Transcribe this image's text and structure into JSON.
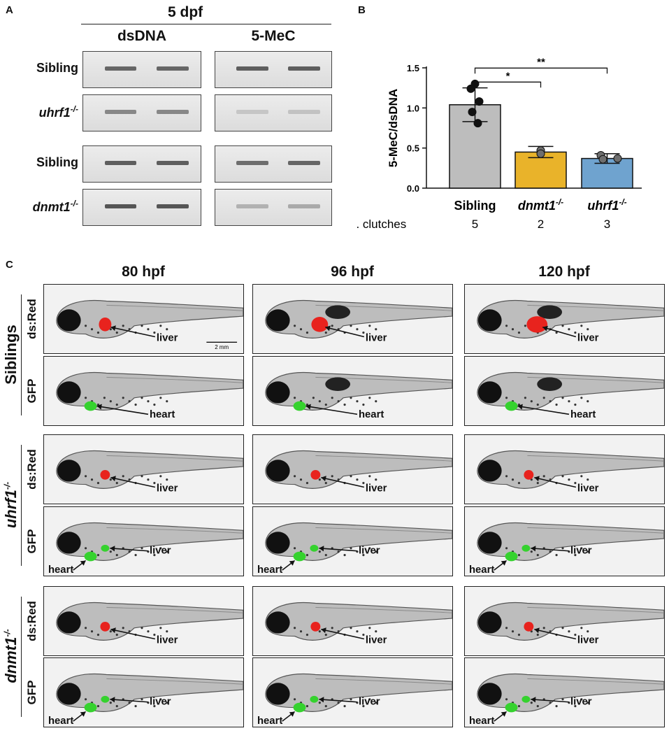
{
  "panels": {
    "A": "A",
    "B": "B",
    "C": "C"
  },
  "panel_a": {
    "stage": "5 dpf",
    "columns": [
      "dsDNA",
      "5-MeC"
    ],
    "rows": [
      {
        "label": "Sibling",
        "italic": false,
        "sup": ""
      },
      {
        "label": "uhrf1",
        "italic": true,
        "sup": "-/-"
      },
      {
        "label": "Sibling",
        "italic": false,
        "sup": ""
      },
      {
        "label": "dnmt1",
        "italic": true,
        "sup": "-/-"
      }
    ]
  },
  "panel_b": {
    "clutch_label": "n. clutches",
    "categories": [
      {
        "name": "Sibling",
        "italic": false,
        "sup": "",
        "n": "5"
      },
      {
        "name": "dnmt1",
        "italic": true,
        "sup": "-/-",
        "n": "2"
      },
      {
        "name": "uhrf1",
        "italic": true,
        "sup": "-/-",
        "n": "3"
      }
    ],
    "sig": [
      "*",
      "**"
    ]
  },
  "chart_data": {
    "type": "bar",
    "categories": [
      "Sibling",
      "dnmt1-/-",
      "uhrf1-/-"
    ],
    "values": [
      1.04,
      0.45,
      0.37
    ],
    "error": [
      0.21,
      0.07,
      0.06
    ],
    "points": [
      [
        1.3,
        1.24,
        1.08,
        0.95,
        0.81
      ],
      [
        0.47,
        0.43
      ],
      [
        0.41,
        0.36,
        0.37
      ]
    ],
    "colors": [
      "#bdbdbd",
      "#e9b32a",
      "#6fa3cf"
    ],
    "ylabel": "5-MeC/dsDNA",
    "ylim": [
      0,
      1.5
    ],
    "yticks": [
      0.0,
      0.5,
      1.0,
      1.5
    ],
    "ytick_labels": [
      "0.0",
      "0.5",
      "1.0",
      "1.5"
    ]
  },
  "panel_c": {
    "timepoints": [
      "80 hpf",
      "96 hpf",
      "120 hpf"
    ],
    "genotypes": [
      {
        "label": "Siblings",
        "italic": false,
        "sup": ""
      },
      {
        "label": "uhrf1",
        "italic": true,
        "sup": "-/-"
      },
      {
        "label": "dnmt1",
        "italic": true,
        "sup": "-/-"
      }
    ],
    "channels": [
      "ds:Red",
      "GFP"
    ],
    "annotations": {
      "liver": "liver",
      "heart": "heart"
    },
    "scale_bar": "2 mm",
    "colors": {
      "red": "#e8231e",
      "green": "#35d22e"
    }
  }
}
